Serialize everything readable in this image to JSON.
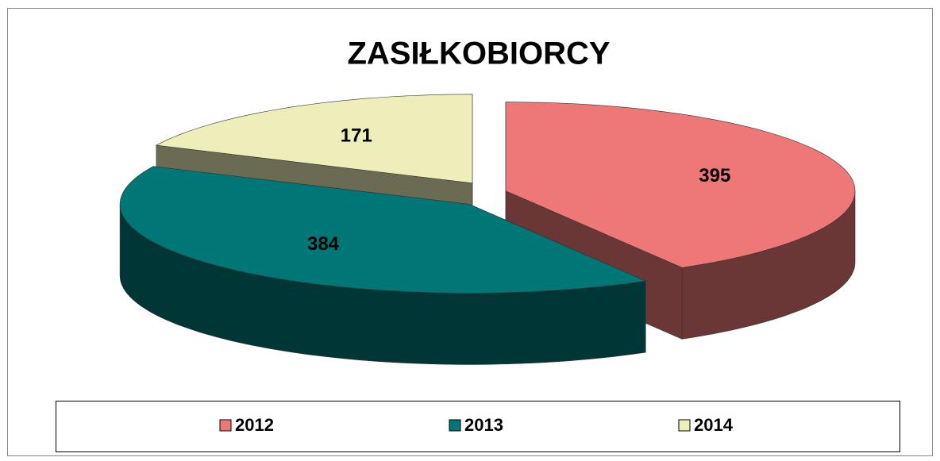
{
  "chart_data": {
    "type": "pie3d",
    "title": "ZASIŁKOBIORCY",
    "categories": [
      "2012",
      "2013",
      "2014"
    ],
    "series": [
      {
        "values": [
          395,
          384,
          171
        ],
        "colors": [
          "#ee7777",
          "#007777",
          "#eeeebb"
        ]
      }
    ],
    "legend": "bottom"
  }
}
